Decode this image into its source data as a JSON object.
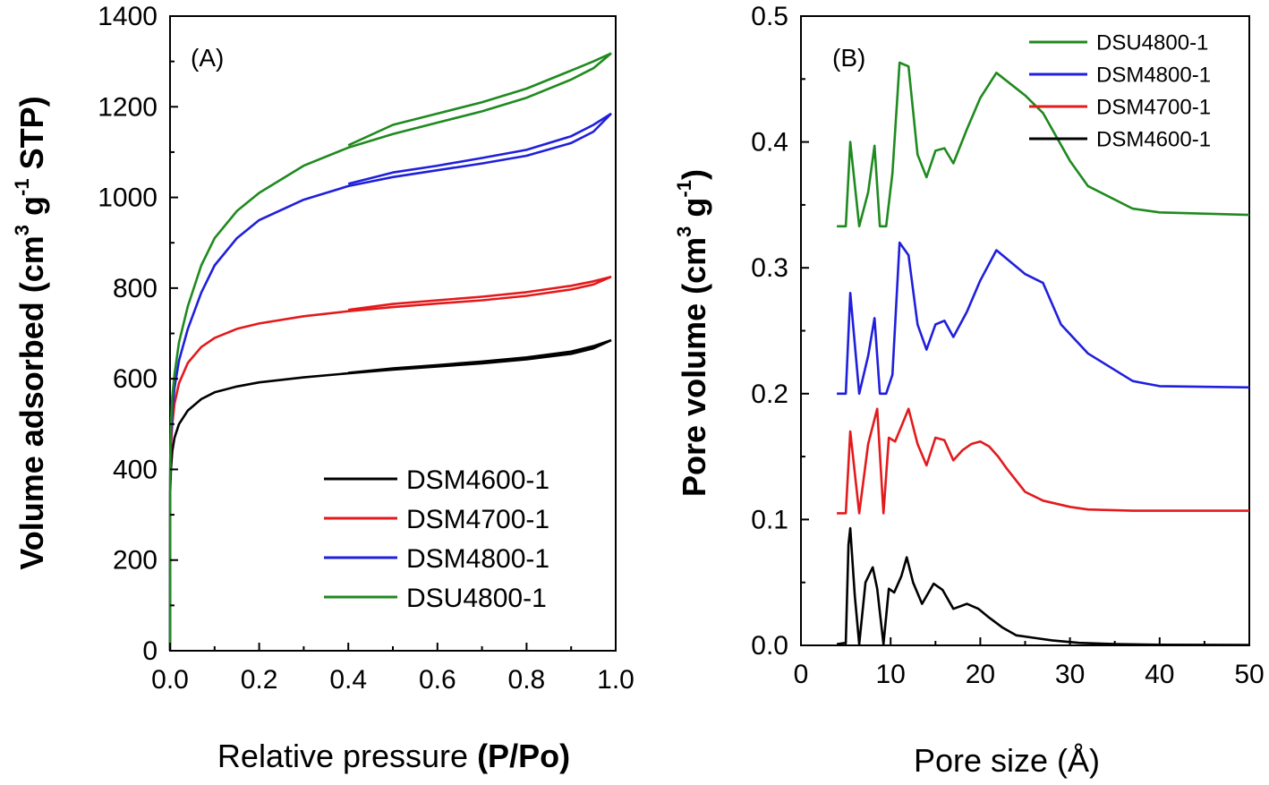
{
  "chart_data": [
    {
      "type": "line",
      "panel_label": "(A)",
      "xlabel_main": "Relative pressure ",
      "xlabel_bold": "(P/Po)",
      "ylabel_parts": [
        "Volume adsorbed (cm",
        "3",
        " g",
        "-1",
        " STP)"
      ],
      "xlim": [
        0.0,
        1.0
      ],
      "ylim": [
        0,
        1400
      ],
      "xticks": [
        "0.0",
        "0.2",
        "0.4",
        "0.6",
        "0.8",
        "1.0"
      ],
      "yticks": [
        "0",
        "200",
        "400",
        "600",
        "800",
        "1000",
        "1200",
        "1400"
      ],
      "legend_position": "bottom-right",
      "legend_order": [
        "DSM4600-1",
        "DSM4700-1",
        "DSM4800-1",
        "DSU4800-1"
      ],
      "series": [
        {
          "name": "DSM4600-1",
          "color": "#000000",
          "adsorption": [
            [
              0,
              0
            ],
            [
              0.0005,
              350
            ],
            [
              0.002,
              400
            ],
            [
              0.005,
              440
            ],
            [
              0.01,
              470
            ],
            [
              0.02,
              500
            ],
            [
              0.04,
              530
            ],
            [
              0.07,
              555
            ],
            [
              0.1,
              570
            ],
            [
              0.15,
              583
            ],
            [
              0.2,
              592
            ],
            [
              0.3,
              603
            ],
            [
              0.4,
              612
            ],
            [
              0.5,
              620
            ],
            [
              0.6,
              627
            ],
            [
              0.7,
              634
            ],
            [
              0.8,
              643
            ],
            [
              0.9,
              655
            ],
            [
              0.95,
              667
            ],
            [
              0.99,
              685
            ]
          ],
          "desorption": [
            [
              0.99,
              685
            ],
            [
              0.95,
              672
            ],
            [
              0.9,
              660
            ],
            [
              0.8,
              647
            ],
            [
              0.7,
              638
            ],
            [
              0.6,
              630
            ],
            [
              0.5,
              623
            ],
            [
              0.4,
              613
            ]
          ]
        },
        {
          "name": "DSM4700-1",
          "color": "#e31a1c",
          "adsorption": [
            [
              0,
              0
            ],
            [
              0.0005,
              380
            ],
            [
              0.002,
              450
            ],
            [
              0.005,
              500
            ],
            [
              0.01,
              545
            ],
            [
              0.02,
              590
            ],
            [
              0.04,
              635
            ],
            [
              0.07,
              670
            ],
            [
              0.1,
              690
            ],
            [
              0.15,
              710
            ],
            [
              0.2,
              722
            ],
            [
              0.3,
              738
            ],
            [
              0.4,
              749
            ],
            [
              0.5,
              758
            ],
            [
              0.6,
              766
            ],
            [
              0.7,
              773
            ],
            [
              0.8,
              783
            ],
            [
              0.9,
              797
            ],
            [
              0.95,
              808
            ],
            [
              0.99,
              825
            ]
          ],
          "desorption": [
            [
              0.99,
              825
            ],
            [
              0.95,
              815
            ],
            [
              0.9,
              805
            ],
            [
              0.8,
              791
            ],
            [
              0.7,
              781
            ],
            [
              0.6,
              773
            ],
            [
              0.5,
              765
            ],
            [
              0.4,
              752
            ]
          ]
        },
        {
          "name": "DSM4800-1",
          "color": "#1f1fdc",
          "adsorption": [
            [
              0,
              0
            ],
            [
              0.0005,
              400
            ],
            [
              0.002,
              470
            ],
            [
              0.005,
              530
            ],
            [
              0.01,
              580
            ],
            [
              0.02,
              640
            ],
            [
              0.04,
              710
            ],
            [
              0.07,
              790
            ],
            [
              0.1,
              850
            ],
            [
              0.15,
              910
            ],
            [
              0.2,
              950
            ],
            [
              0.3,
              995
            ],
            [
              0.4,
              1025
            ],
            [
              0.5,
              1045
            ],
            [
              0.6,
              1060
            ],
            [
              0.7,
              1075
            ],
            [
              0.8,
              1092
            ],
            [
              0.9,
              1120
            ],
            [
              0.95,
              1145
            ],
            [
              0.99,
              1185
            ]
          ],
          "desorption": [
            [
              0.99,
              1185
            ],
            [
              0.95,
              1160
            ],
            [
              0.9,
              1135
            ],
            [
              0.8,
              1105
            ],
            [
              0.7,
              1087
            ],
            [
              0.6,
              1070
            ],
            [
              0.5,
              1055
            ],
            [
              0.4,
              1030
            ]
          ]
        },
        {
          "name": "DSU4800-1",
          "color": "#1f8a1f",
          "adsorption": [
            [
              0,
              0
            ],
            [
              0.0005,
              420
            ],
            [
              0.002,
              500
            ],
            [
              0.005,
              560
            ],
            [
              0.01,
              610
            ],
            [
              0.02,
              680
            ],
            [
              0.04,
              760
            ],
            [
              0.07,
              850
            ],
            [
              0.1,
              910
            ],
            [
              0.15,
              970
            ],
            [
              0.2,
              1010
            ],
            [
              0.3,
              1070
            ],
            [
              0.4,
              1110
            ],
            [
              0.5,
              1140
            ],
            [
              0.6,
              1165
            ],
            [
              0.7,
              1190
            ],
            [
              0.8,
              1220
            ],
            [
              0.9,
              1260
            ],
            [
              0.95,
              1285
            ],
            [
              0.99,
              1318
            ]
          ],
          "desorption": [
            [
              0.99,
              1318
            ],
            [
              0.95,
              1300
            ],
            [
              0.9,
              1280
            ],
            [
              0.8,
              1240
            ],
            [
              0.7,
              1210
            ],
            [
              0.6,
              1185
            ],
            [
              0.5,
              1160
            ],
            [
              0.4,
              1115
            ]
          ]
        }
      ]
    },
    {
      "type": "line",
      "panel_label": "(B)",
      "xlabel": "Pore size (Å)",
      "ylabel_parts": [
        "Pore volume (cm",
        "3",
        " g",
        "-1",
        ")"
      ],
      "xlim": [
        0,
        50
      ],
      "ylim": [
        0.0,
        0.5
      ],
      "xticks": [
        "0",
        "10",
        "20",
        "30",
        "40",
        "50"
      ],
      "yticks": [
        "0.0",
        "0.1",
        "0.2",
        "0.3",
        "0.4",
        "0.5"
      ],
      "legend_position": "top-right",
      "legend_order": [
        "DSU4800-1",
        "DSM4800-1",
        "DSM4700-1",
        "DSM4600-1"
      ],
      "series": [
        {
          "name": "DSM4600-1",
          "color": "#000000",
          "x": [
            4.0,
            5.0,
            5.3,
            5.5,
            6.0,
            6.5,
            7.2,
            8.0,
            8.5,
            9.2,
            9.8,
            10.4,
            11.2,
            11.8,
            12.5,
            13.5,
            14.8,
            15.8,
            17.0,
            18.5,
            19.8,
            21.0,
            22.5,
            24.0,
            26.0,
            28.0,
            31.0,
            35.0,
            40.0,
            50.0
          ],
          "values": [
            0.001,
            0.002,
            0.08,
            0.093,
            0.04,
            0.001,
            0.05,
            0.062,
            0.045,
            0.001,
            0.045,
            0.042,
            0.055,
            0.07,
            0.05,
            0.033,
            0.049,
            0.044,
            0.029,
            0.033,
            0.029,
            0.022,
            0.014,
            0.008,
            0.006,
            0.004,
            0.002,
            0.001,
            0.0005,
            0.0003
          ]
        },
        {
          "name": "DSM4700-1",
          "color": "#e31a1c",
          "x": [
            4.0,
            5.0,
            5.5,
            6.5,
            7.5,
            8.5,
            9.2,
            9.8,
            10.5,
            11.2,
            12.0,
            13.0,
            14.0,
            15.0,
            16.0,
            17.0,
            18.0,
            19.0,
            20.0,
            21.0,
            22.0,
            23.0,
            25.0,
            27.0,
            30.0,
            32.0,
            37.0,
            40.0,
            50.0
          ],
          "values": [
            0.105,
            0.105,
            0.17,
            0.105,
            0.16,
            0.188,
            0.105,
            0.165,
            0.162,
            0.174,
            0.188,
            0.16,
            0.143,
            0.165,
            0.163,
            0.147,
            0.155,
            0.16,
            0.162,
            0.158,
            0.15,
            0.14,
            0.122,
            0.115,
            0.11,
            0.108,
            0.107,
            0.107,
            0.107
          ]
        },
        {
          "name": "DSM4800-1",
          "color": "#1f1fdc",
          "x": [
            4.0,
            5.0,
            5.5,
            6.5,
            7.5,
            8.2,
            8.8,
            9.5,
            10.2,
            11.0,
            12.0,
            13.0,
            14.0,
            15.0,
            16.0,
            17.0,
            18.5,
            20.0,
            21.8,
            25.0,
            27.0,
            29.0,
            32.0,
            37.0,
            40.0,
            50.0
          ],
          "values": [
            0.2,
            0.2,
            0.28,
            0.2,
            0.23,
            0.26,
            0.2,
            0.2,
            0.215,
            0.32,
            0.31,
            0.255,
            0.235,
            0.255,
            0.258,
            0.245,
            0.265,
            0.29,
            0.314,
            0.295,
            0.288,
            0.255,
            0.232,
            0.21,
            0.206,
            0.205
          ]
        },
        {
          "name": "DSU4800-1",
          "color": "#1f8a1f",
          "x": [
            4.0,
            5.0,
            5.5,
            6.5,
            7.5,
            8.2,
            8.8,
            9.5,
            10.2,
            11.0,
            12.0,
            13.0,
            14.0,
            15.0,
            16.0,
            17.0,
            18.5,
            20.0,
            21.8,
            25.0,
            27.0,
            30.0,
            32.0,
            37.0,
            40.0,
            50.0
          ],
          "values": [
            0.333,
            0.333,
            0.4,
            0.333,
            0.36,
            0.397,
            0.333,
            0.333,
            0.375,
            0.463,
            0.46,
            0.39,
            0.372,
            0.393,
            0.395,
            0.383,
            0.41,
            0.435,
            0.455,
            0.437,
            0.423,
            0.385,
            0.365,
            0.347,
            0.344,
            0.342
          ]
        }
      ]
    }
  ]
}
